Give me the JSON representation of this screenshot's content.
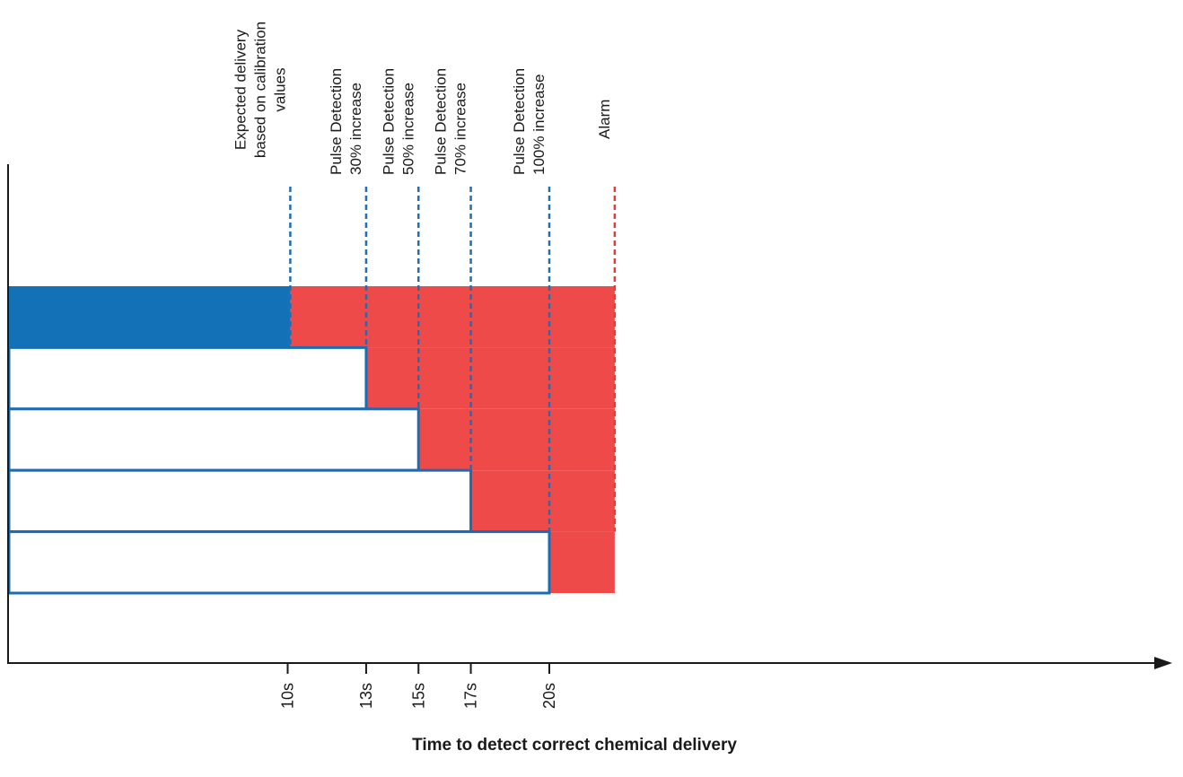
{
  "chart_data": {
    "type": "bar",
    "xlabel": "Time to detect correct chemical delivery",
    "x_ticks": [
      {
        "value": 10,
        "label": "10s"
      },
      {
        "value": 13,
        "label": "13s"
      },
      {
        "value": 15,
        "label": "15s"
      },
      {
        "value": 17,
        "label": "17s"
      },
      {
        "value": 20,
        "label": "20s"
      }
    ],
    "markers": [
      {
        "value": 10.1,
        "lines": [
          "Expected delivery",
          "based on calibration",
          "values"
        ],
        "color": "#1f6fb2"
      },
      {
        "value": 13,
        "lines": [
          "Pulse Detection",
          "30% increase"
        ],
        "color": "#1f6fb2"
      },
      {
        "value": 15,
        "lines": [
          "Pulse Detection",
          "50% increase"
        ],
        "color": "#1f6fb2"
      },
      {
        "value": 17,
        "lines": [
          "Pulse Detection",
          "70% increase"
        ],
        "color": "#1f6fb2"
      },
      {
        "value": 20,
        "lines": [
          "Pulse Detection",
          "100% increase"
        ],
        "color": "#1f6fb2"
      },
      {
        "value": 22.5,
        "lines": [
          "Alarm"
        ],
        "color": "#e53b3b"
      }
    ],
    "bars": [
      {
        "end": 10.1,
        "style": "filled"
      },
      {
        "end": 13,
        "style": "outline"
      },
      {
        "end": 15,
        "style": "outline"
      },
      {
        "end": 17,
        "style": "outline"
      },
      {
        "end": 20,
        "style": "outline"
      }
    ],
    "alarm_region_end": 22.5,
    "colors": {
      "blue": "#1271b7",
      "red": "#ef4a4a",
      "axis": "#1a1a1a",
      "outline": "#1a6db5"
    }
  }
}
